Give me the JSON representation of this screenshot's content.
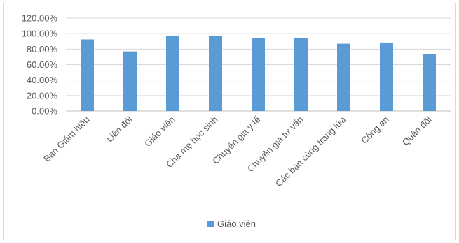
{
  "chart_data": {
    "type": "bar",
    "categories": [
      "Ban Giám hiệu",
      "Liên đội",
      "Giáo viên",
      "Cha mẹ học sinh",
      "Chuyên gia y tế",
      "Chuyên gia tư vấn",
      "Các bạn cùng trang lứa",
      "Công an",
      "Quân đội"
    ],
    "series": [
      {
        "name": "Giáo viên",
        "values": [
          92.5,
          77,
          97.5,
          97.5,
          94,
          94,
          87,
          88.5,
          73.5
        ],
        "color": "#5b9bd5"
      }
    ],
    "yticks": [
      "0.00%",
      "20.00%",
      "40.00%",
      "60.00%",
      "80.00%",
      "100.00%",
      "120.00%"
    ],
    "ylim": [
      0,
      120
    ],
    "grid": true,
    "legend_position": "bottom"
  }
}
